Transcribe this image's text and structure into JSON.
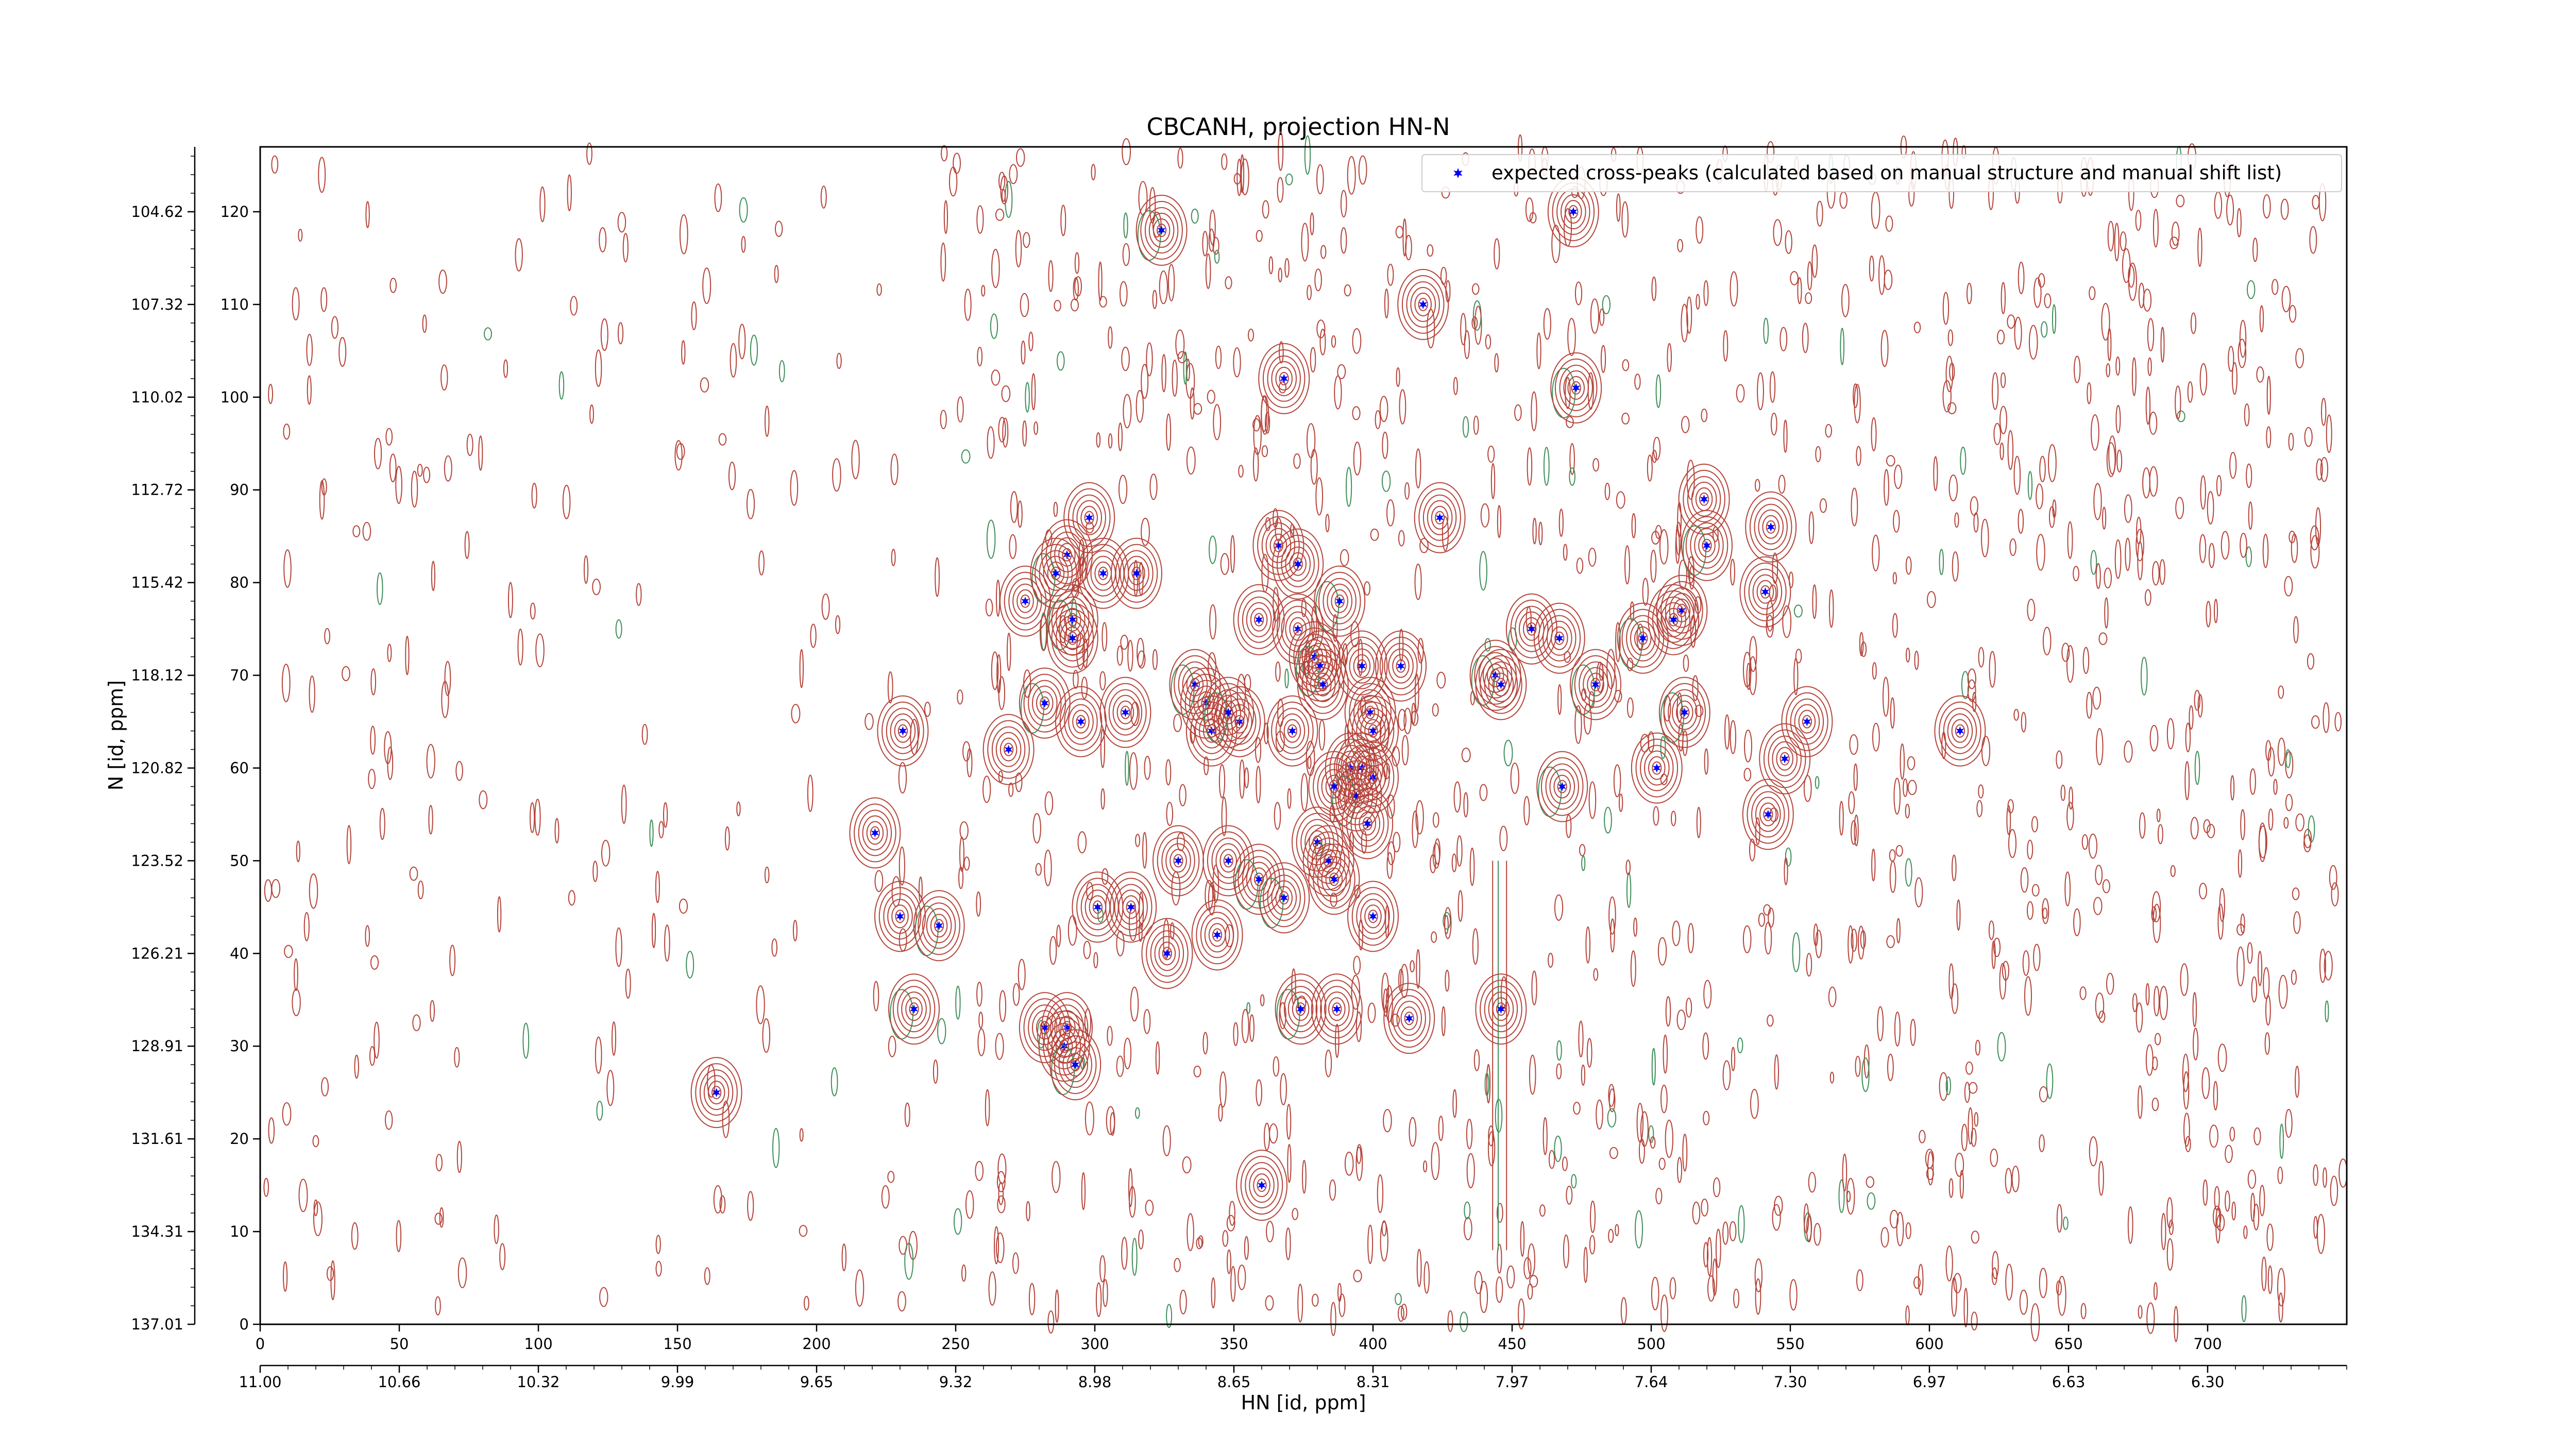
{
  "chart_data": {
    "type": "scatter",
    "title": "CBCANH, projection HN-N",
    "xlabel": "HN [id, ppm]",
    "ylabel": "N [id, ppm]",
    "xlim": [
      0,
      750
    ],
    "ylim": [
      0,
      127
    ],
    "x_ticks": [
      0,
      50,
      100,
      150,
      200,
      250,
      300,
      350,
      400,
      450,
      500,
      550,
      600,
      650,
      700
    ],
    "y_ticks": [
      0,
      10,
      20,
      30,
      40,
      50,
      60,
      70,
      80,
      90,
      100,
      110,
      120
    ],
    "x_ppm_ticks": [
      {
        "pos": 0,
        "label": "11.00"
      },
      {
        "pos": 50,
        "label": "10.66"
      },
      {
        "pos": 100,
        "label": "10.32"
      },
      {
        "pos": 150,
        "label": "9.99"
      },
      {
        "pos": 200,
        "label": "9.65"
      },
      {
        "pos": 250,
        "label": "9.32"
      },
      {
        "pos": 300,
        "label": "8.98"
      },
      {
        "pos": 350,
        "label": "8.65"
      },
      {
        "pos": 400,
        "label": "8.31"
      },
      {
        "pos": 450,
        "label": "7.97"
      },
      {
        "pos": 500,
        "label": "7.64"
      },
      {
        "pos": 550,
        "label": "7.30"
      },
      {
        "pos": 600,
        "label": "6.97"
      },
      {
        "pos": 650,
        "label": "6.63"
      },
      {
        "pos": 700,
        "label": "6.30"
      }
    ],
    "y_ppm_ticks": [
      {
        "pos": 0,
        "label": "137.01"
      },
      {
        "pos": 10,
        "label": "134.31"
      },
      {
        "pos": 20,
        "label": "131.61"
      },
      {
        "pos": 30,
        "label": "128.91"
      },
      {
        "pos": 40,
        "label": "126.21"
      },
      {
        "pos": 50,
        "label": "123.52"
      },
      {
        "pos": 60,
        "label": "120.82"
      },
      {
        "pos": 70,
        "label": "118.12"
      },
      {
        "pos": 80,
        "label": "115.42"
      },
      {
        "pos": 90,
        "label": "112.72"
      },
      {
        "pos": 100,
        "label": "110.02"
      },
      {
        "pos": 110,
        "label": "107.32"
      },
      {
        "pos": 120,
        "label": "104.62"
      }
    ],
    "legend_position": "top-right",
    "grid": false,
    "colors": {
      "positive_contour": "#b5443a",
      "negative_contour": "#3f8f5a",
      "marker": "#0000ff"
    },
    "series": [
      {
        "name": "expected cross-peaks (calculated based on manual structure and manual shift list)",
        "marker": "star",
        "x": [
          324,
          472,
          418,
          368,
          473,
          424,
          519,
          543,
          520,
          541,
          298,
          290,
          286,
          303,
          315,
          275,
          292,
          292,
          366,
          373,
          388,
          359,
          373,
          379,
          381,
          382,
          396,
          410,
          444,
          446,
          457,
          467,
          497,
          511,
          508,
          311,
          336,
          340,
          352,
          342,
          348,
          371,
          399,
          400,
          282,
          295,
          269,
          231,
          512,
          548,
          556,
          611,
          480,
          392,
          396,
          400,
          394,
          386,
          398,
          502,
          468,
          221,
          330,
          348,
          359,
          380,
          384,
          386,
          368,
          301,
          313,
          230,
          244,
          326,
          344,
          400,
          374,
          387,
          413,
          446,
          235,
          290,
          282,
          289,
          293,
          164,
          360,
          542
        ],
        "y": [
          118,
          120,
          110,
          102,
          101,
          87,
          89,
          86,
          84,
          79,
          87,
          83,
          81,
          81,
          81,
          78,
          76,
          74,
          84,
          82,
          78,
          76,
          75,
          72,
          71,
          69,
          71,
          71,
          70,
          69,
          75,
          74,
          74,
          77,
          76,
          66,
          69,
          67,
          65,
          64,
          66,
          64,
          66,
          64,
          67,
          65,
          62,
          64,
          66,
          61,
          65,
          64,
          69,
          60,
          60,
          59,
          57,
          58,
          54,
          60,
          58,
          53,
          50,
          50,
          48,
          52,
          50,
          48,
          46,
          45,
          45,
          44,
          43,
          40,
          42,
          44,
          34,
          34,
          33,
          34,
          34,
          32,
          32,
          30,
          28,
          25,
          15,
          55
        ]
      }
    ]
  }
}
